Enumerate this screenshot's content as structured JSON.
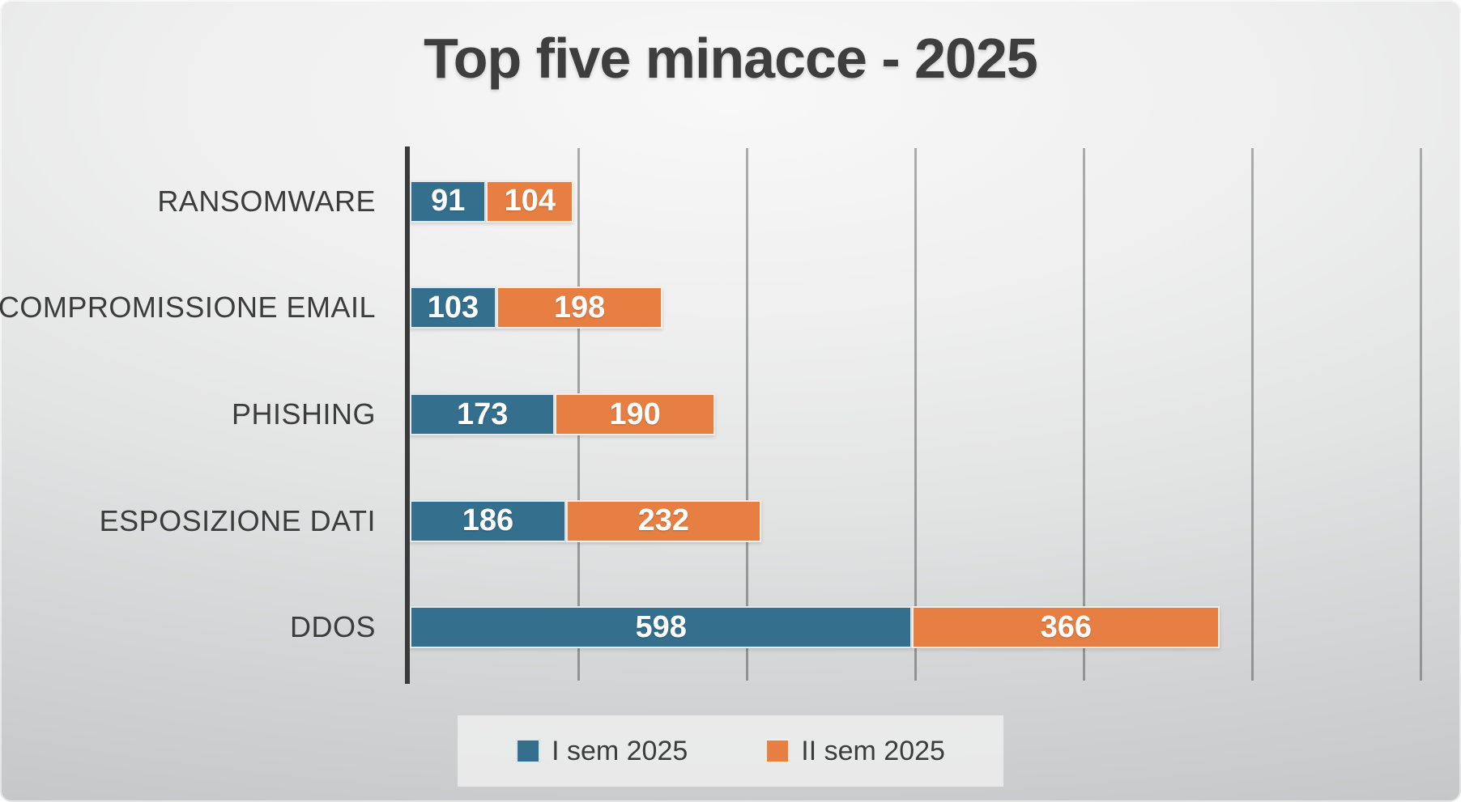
{
  "title": "Top five minacce - 2025",
  "colors": {
    "series1": "#34708E",
    "series2": "#E77F43",
    "axis": "#3A3A3A",
    "gridline": "#9EA0A1",
    "title_text": "#3E3E3E",
    "label_text": "#3C3C3C",
    "value_text": "#FFFFFF",
    "background_light": "#F8F8F8",
    "background_dark": "#C5C7C8",
    "legend_background": "#ECECEC"
  },
  "chart_data": {
    "type": "bar",
    "orientation": "horizontal",
    "stacked": true,
    "title": "Top five minacce - 2025",
    "categories": [
      "RANSOMWARE",
      "COMPROMISSIONE EMAIL",
      "PHISHING",
      "ESPOSIZIONE DATI",
      "DDOS"
    ],
    "series": [
      {
        "name": "I sem 2025",
        "color": "#34708E",
        "values": [
          91,
          103,
          173,
          186,
          598
        ]
      },
      {
        "name": "II sem 2025",
        "color": "#E77F43",
        "values": [
          104,
          198,
          190,
          232,
          366
        ]
      }
    ],
    "totals": [
      195,
      301,
      363,
      418,
      964
    ],
    "xlim": [
      0,
      1200
    ],
    "gridline_interval": 200,
    "grid": true,
    "data_labels": true,
    "legend_position": "bottom",
    "xlabel": "",
    "ylabel": ""
  }
}
